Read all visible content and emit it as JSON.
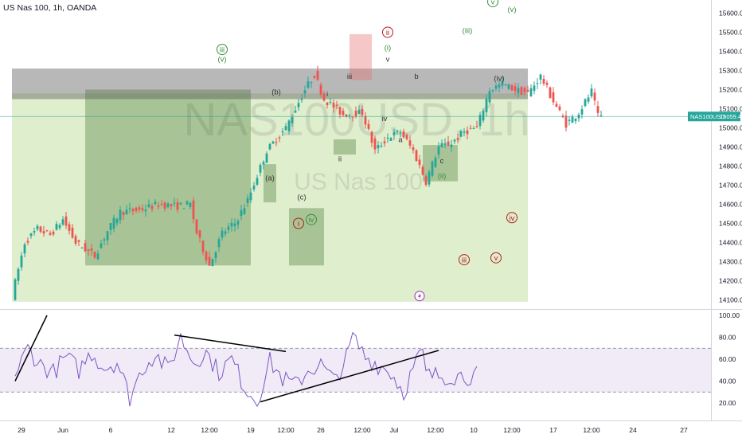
{
  "header": {
    "symbol_line": "US Nas 100, 1h, OANDA"
  },
  "watermark": {
    "main": "NAS100USD, 1h",
    "sub": "US Nas 100"
  },
  "colors": {
    "up": "#26a69a",
    "down": "#ef5350",
    "zone_green": "#8bc34a",
    "zone_dark": "#555555",
    "zone_red": "#e57373",
    "rsi_line": "#7e57c2",
    "rsi_band": "#ede7f6",
    "wave_green": "#388e3c",
    "wave_red": "#b71c1c",
    "trendline": "#000000"
  },
  "chart_data": [
    {
      "type": "candlestick",
      "title": "US Nas 100, 1h, OANDA",
      "symbol": "NAS100USD",
      "last_price": "15059.4",
      "y_ticks": [
        "15600.0",
        "15500.0",
        "15400.0",
        "15300.0",
        "15200.0",
        "15100.0",
        "15000.0",
        "14900.0",
        "14800.0",
        "14700.0",
        "14600.0",
        "14500.0",
        "14400.0",
        "14300.0",
        "14200.0",
        "14100.0"
      ],
      "ylim": [
        14080,
        15700
      ],
      "x_ticks": [
        "29",
        "Jun",
        "6",
        "12",
        "12:00",
        "19",
        "12:00",
        "26",
        "12:00",
        "Jul",
        "12:00",
        "10",
        "12:00",
        "17",
        "12:00",
        "24",
        "27"
      ],
      "price_path": [
        [
          0,
          14120
        ],
        [
          4,
          14400
        ],
        [
          8,
          14470
        ],
        [
          12,
          14440
        ],
        [
          16,
          14520
        ],
        [
          20,
          14400
        ],
        [
          26,
          14330
        ],
        [
          30,
          14460
        ],
        [
          34,
          14560
        ],
        [
          40,
          14570
        ],
        [
          46,
          14600
        ],
        [
          52,
          14590
        ],
        [
          56,
          14600
        ],
        [
          58,
          14450
        ],
        [
          62,
          14280
        ],
        [
          66,
          14450
        ],
        [
          70,
          14500
        ],
        [
          74,
          14620
        ],
        [
          80,
          14880
        ],
        [
          86,
          15000
        ],
        [
          92,
          15200
        ],
        [
          95,
          15280
        ],
        [
          98,
          15150
        ],
        [
          104,
          15070
        ],
        [
          110,
          15080
        ],
        [
          114,
          14880
        ],
        [
          118,
          14950
        ],
        [
          122,
          14980
        ],
        [
          126,
          14880
        ],
        [
          130,
          14720
        ],
        [
          134,
          14900
        ],
        [
          138,
          14920
        ],
        [
          142,
          14980
        ],
        [
          146,
          15000
        ],
        [
          150,
          15200
        ],
        [
          154,
          15230
        ],
        [
          158,
          15200
        ],
        [
          162,
          15180
        ],
        [
          166,
          15270
        ],
        [
          170,
          15140
        ],
        [
          174,
          15020
        ],
        [
          178,
          15080
        ],
        [
          182,
          15190
        ],
        [
          184,
          15059
        ]
      ],
      "zones": [
        {
          "kind": "green",
          "x": [
            -1,
            161
          ],
          "y": [
            14090,
            15180
          ]
        },
        {
          "kind": "green_dark",
          "x": [
            22,
            74
          ],
          "y": [
            14280,
            15200
          ]
        },
        {
          "kind": "green_dark",
          "x": [
            78,
            82
          ],
          "y": [
            14610,
            14810
          ]
        },
        {
          "kind": "green_dark",
          "x": [
            86,
            97
          ],
          "y": [
            14280,
            14580
          ]
        },
        {
          "kind": "green_dark",
          "x": [
            100,
            107
          ],
          "y": [
            14860,
            14940
          ]
        },
        {
          "kind": "green_dark",
          "x": [
            128,
            139
          ],
          "y": [
            14720,
            14910
          ]
        },
        {
          "kind": "gray",
          "x": [
            -1,
            161
          ],
          "y": [
            15150,
            15310
          ]
        },
        {
          "kind": "red",
          "x": [
            105,
            112
          ],
          "y": [
            15250,
            15490
          ]
        }
      ],
      "wave_labels": [
        {
          "t": "iii",
          "x": 65,
          "y": 15410,
          "color": "green",
          "circle": true
        },
        {
          "t": "(v)",
          "x": 65,
          "y": 15360,
          "color": "green",
          "circle": false
        },
        {
          "t": "(b)",
          "x": 82,
          "y": 15190,
          "color": "dark",
          "circle": false
        },
        {
          "t": "(a)",
          "x": 80,
          "y": 14740,
          "color": "dark",
          "circle": false
        },
        {
          "t": "(c)",
          "x": 90,
          "y": 14640,
          "color": "dark",
          "circle": false
        },
        {
          "t": "i",
          "x": 89,
          "y": 14500,
          "color": "red",
          "circle": true
        },
        {
          "t": "iv",
          "x": 93,
          "y": 14520,
          "color": "green",
          "circle": true
        },
        {
          "t": "i",
          "x": 98,
          "y": 15180,
          "color": "dark",
          "circle": false
        },
        {
          "t": "ii",
          "x": 102,
          "y": 14840,
          "color": "dark",
          "circle": false
        },
        {
          "t": "iii",
          "x": 105,
          "y": 15270,
          "color": "dark",
          "circle": false
        },
        {
          "t": "ii",
          "x": 117,
          "y": 15500,
          "color": "red",
          "circle": true
        },
        {
          "t": "(i)",
          "x": 117,
          "y": 15420,
          "color": "green",
          "circle": false
        },
        {
          "t": "v",
          "x": 117,
          "y": 15360,
          "color": "dark",
          "circle": false
        },
        {
          "t": "iv",
          "x": 116,
          "y": 15050,
          "color": "dark",
          "circle": false
        },
        {
          "t": "a",
          "x": 121,
          "y": 14940,
          "color": "dark",
          "circle": false
        },
        {
          "t": "b",
          "x": 126,
          "y": 15270,
          "color": "dark",
          "circle": false
        },
        {
          "t": "c",
          "x": 134,
          "y": 14830,
          "color": "dark",
          "circle": false
        },
        {
          "t": "(ii)",
          "x": 134,
          "y": 14750,
          "color": "green",
          "circle": false
        },
        {
          "t": "(iii)",
          "x": 142,
          "y": 15510,
          "color": "green",
          "circle": false
        },
        {
          "t": "v",
          "x": 150,
          "y": 15660,
          "color": "green",
          "circle": true
        },
        {
          "t": "(v)",
          "x": 156,
          "y": 15620,
          "color": "green",
          "circle": false
        },
        {
          "t": "(iv)",
          "x": 152,
          "y": 15260,
          "color": "dark",
          "circle": false
        },
        {
          "t": "iv",
          "x": 156,
          "y": 14530,
          "color": "red",
          "circle": true
        },
        {
          "t": "iii",
          "x": 141,
          "y": 14310,
          "color": "red",
          "circle": true
        },
        {
          "t": "v",
          "x": 151,
          "y": 14320,
          "color": "red",
          "circle": true
        }
      ]
    },
    {
      "type": "line",
      "indicator": "RSI",
      "y_ticks": [
        "100.00",
        "80.00",
        "60.00",
        "40.00",
        "20.00"
      ],
      "ylim": [
        14,
        104
      ],
      "band": [
        30,
        70
      ],
      "rsi_path": [
        [
          0,
          45
        ],
        [
          4,
          70
        ],
        [
          8,
          55
        ],
        [
          12,
          48
        ],
        [
          16,
          62
        ],
        [
          20,
          50
        ],
        [
          24,
          66
        ],
        [
          28,
          52
        ],
        [
          32,
          58
        ],
        [
          36,
          25
        ],
        [
          40,
          52
        ],
        [
          44,
          65
        ],
        [
          48,
          50
        ],
        [
          52,
          80
        ],
        [
          56,
          58
        ],
        [
          60,
          66
        ],
        [
          64,
          48
        ],
        [
          68,
          60
        ],
        [
          72,
          35
        ],
        [
          76,
          22
        ],
        [
          80,
          58
        ],
        [
          84,
          42
        ],
        [
          88,
          36
        ],
        [
          92,
          50
        ],
        [
          96,
          55
        ],
        [
          100,
          40
        ],
        [
          104,
          60
        ],
        [
          106,
          80
        ],
        [
          110,
          62
        ],
        [
          114,
          55
        ],
        [
          118,
          48
        ],
        [
          122,
          30
        ],
        [
          126,
          58
        ],
        [
          128,
          66
        ],
        [
          127,
          45
        ]
      ],
      "trendlines": [
        {
          "x": [
            0,
            10
          ],
          "y": [
            40,
            100
          ]
        },
        {
          "x": [
            50,
            85
          ],
          "y": [
            82,
            67
          ]
        },
        {
          "x": [
            77,
            133
          ],
          "y": [
            21,
            68
          ]
        }
      ],
      "lightning": {
        "x": 127,
        "price": 14120
      }
    }
  ]
}
